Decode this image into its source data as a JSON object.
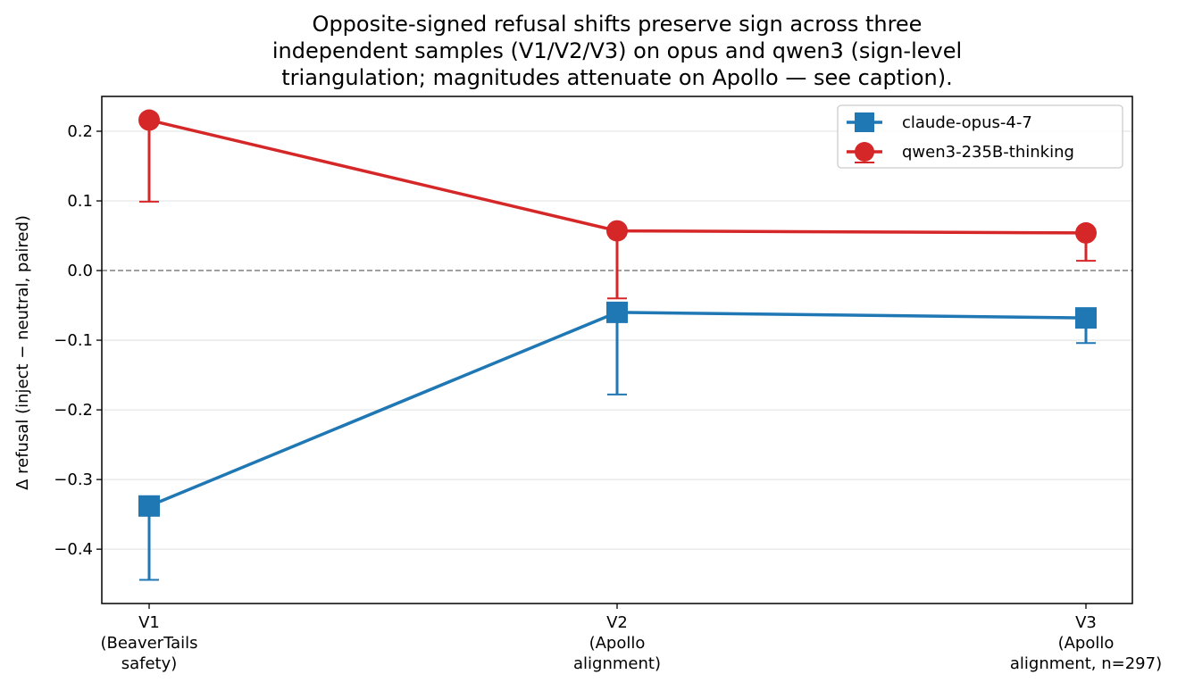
{
  "chart_data": {
    "type": "line",
    "title_lines": [
      "Opposite-signed refusal shifts preserve sign across three",
      "independent samples (V1/V2/V3) on opus and qwen3 (sign-level",
      "triangulation; magnitudes attenuate on Apollo — see caption)."
    ],
    "ylabel": "Δ refusal (inject − neutral, paired)",
    "xlabel": "",
    "categories": [
      [
        "V1",
        "(BeaverTails",
        "safety)"
      ],
      [
        "V2",
        "(Apollo",
        "alignment)"
      ],
      [
        "V3",
        "(Apollo",
        "alignment, n=297)"
      ]
    ],
    "ylim": [
      -0.478,
      0.25
    ],
    "yticks": [
      0.2,
      0.1,
      0.0,
      -0.1,
      -0.2,
      -0.3,
      -0.4
    ],
    "ytick_labels": [
      "0.2",
      "0.1",
      "0.0",
      "−0.1",
      "−0.2",
      "−0.3",
      "−0.4"
    ],
    "grid": "y",
    "zero_line": true,
    "legend_position": "top-right",
    "series": [
      {
        "name": "claude-opus-4-7",
        "color": "#1f77b4",
        "marker": "square",
        "values": [
          -0.338,
          -0.06,
          -0.068
        ],
        "err_low": [
          -0.444,
          -0.178,
          -0.104
        ],
        "err_high": [
          null,
          null,
          null
        ]
      },
      {
        "name": "qwen3-235B-thinking",
        "color": "#d62728",
        "marker": "circle",
        "values": [
          0.216,
          0.057,
          0.054
        ],
        "err_low": [
          0.099,
          -0.04,
          0.014
        ],
        "err_high": [
          null,
          null,
          null
        ]
      }
    ]
  }
}
